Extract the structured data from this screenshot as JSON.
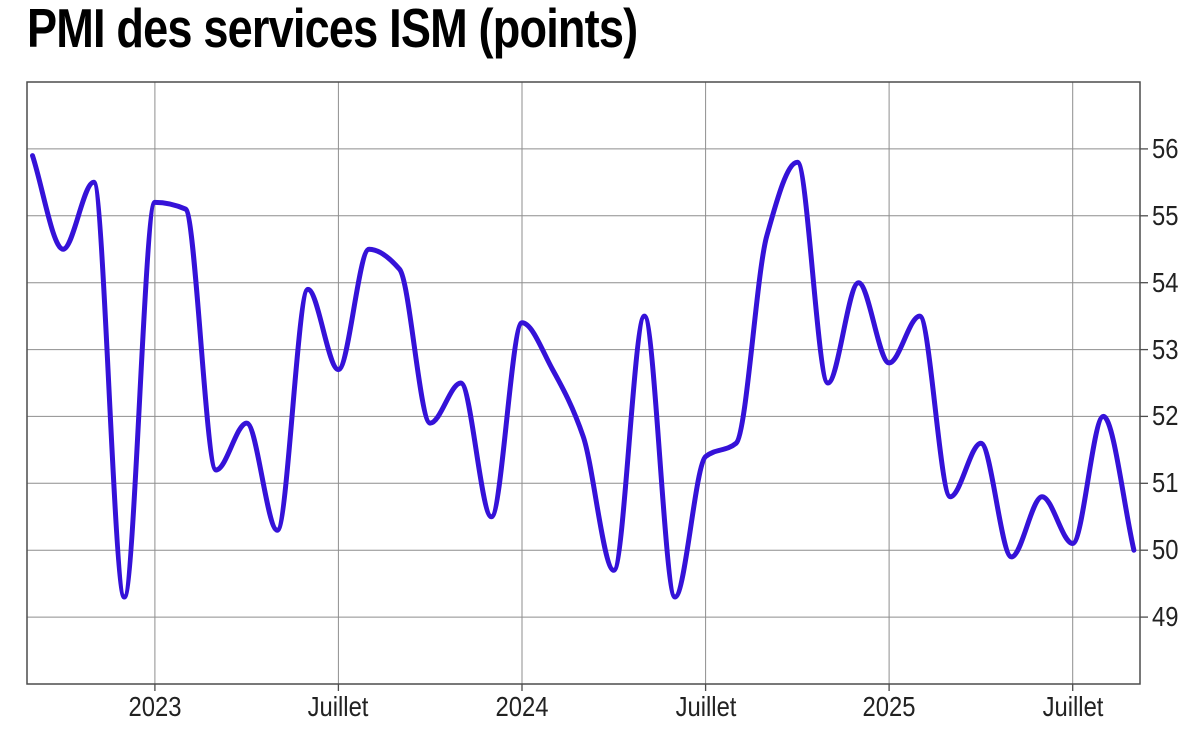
{
  "title": "PMI des services ISM (points)",
  "colors": {
    "background": "#ffffff",
    "grid": "#8e8e8e",
    "frame": "#4c4c4c",
    "tick_text": "#222222",
    "title_text": "#000000",
    "line": "#3512d8"
  },
  "chart_data": {
    "type": "line",
    "title": "PMI des services ISM (points)",
    "unit": "points",
    "legend": "none",
    "grid": true,
    "line_color": "#3512d8",
    "ylim": [
      48,
      57
    ],
    "y_ticks": [
      49,
      50,
      51,
      52,
      53,
      54,
      55,
      56
    ],
    "x_tick_labels": [
      "2023",
      "Juillet",
      "2024",
      "Juillet",
      "2025",
      "Juillet"
    ],
    "x_tick_month_index": [
      4,
      10,
      16,
      22,
      28,
      34
    ],
    "x": [
      "2022-09",
      "2022-10",
      "2022-11",
      "2022-12",
      "2023-01",
      "2023-02",
      "2023-03",
      "2023-04",
      "2023-05",
      "2023-06",
      "2023-07",
      "2023-08",
      "2023-09",
      "2023-10",
      "2023-11",
      "2023-12",
      "2024-01",
      "2024-02",
      "2024-03",
      "2024-04",
      "2024-05",
      "2024-06",
      "2024-07",
      "2024-08",
      "2024-09",
      "2024-10",
      "2024-11",
      "2024-12",
      "2025-01",
      "2025-02",
      "2025-03",
      "2025-04",
      "2025-05",
      "2025-06",
      "2025-07",
      "2025-08",
      "2025-09"
    ],
    "values": [
      55.9,
      54.5,
      55.5,
      49.3,
      55.2,
      55.1,
      51.2,
      51.9,
      50.3,
      53.9,
      52.7,
      54.5,
      54.2,
      51.9,
      52.5,
      50.5,
      53.4,
      52.7,
      51.7,
      49.7,
      53.5,
      49.3,
      51.4,
      51.6,
      54.7,
      55.8,
      52.5,
      54.0,
      52.8,
      53.5,
      50.8,
      51.6,
      49.9,
      50.8,
      50.1,
      52.0,
      50.0
    ]
  }
}
